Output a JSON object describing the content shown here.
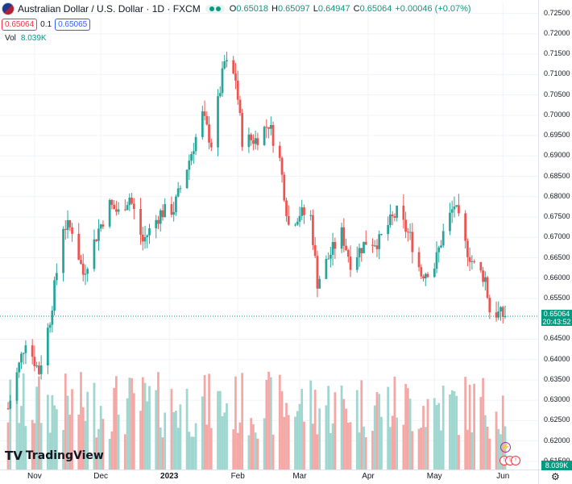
{
  "header": {
    "title": "Australian Dollar / U.S. Dollar · 1D · FXCM",
    "open_label": "O",
    "open": "0.65018",
    "high_label": "H",
    "high": "0.65097",
    "low_label": "L",
    "low": "0.64947",
    "close_label": "C",
    "close": "0.65064",
    "change": "+0.00046 (+0.07%)"
  },
  "trade": {
    "sell_price": "0.65064",
    "spread": "0.1",
    "buy_price": "0.65065"
  },
  "volume_indicator": {
    "label": "Vol",
    "value": "8.039K"
  },
  "last_price_tag": {
    "price": "0.65064",
    "countdown": "20:43:52"
  },
  "volume_tag": "8.039K",
  "branding": {
    "logo_text": "TradingView"
  },
  "colors": {
    "up": "#26a69a",
    "down": "#ef5350",
    "vol_up": "#9fd6cf",
    "vol_down": "#f4a8a6",
    "accent": "#089981"
  },
  "chart_data": {
    "type": "candlestick",
    "title": "Australian Dollar / U.S. Dollar · 1D · FXCM",
    "y_ticks": [
      "0.72500",
      "0.72000",
      "0.71500",
      "0.71000",
      "0.70500",
      "0.70000",
      "0.69500",
      "0.69000",
      "0.68500",
      "0.68000",
      "0.67500",
      "0.67000",
      "0.66500",
      "0.66000",
      "0.65500",
      "0.65000",
      "0.64500",
      "0.64000",
      "0.63500",
      "0.63000",
      "0.62500",
      "0.62000",
      "0.61500"
    ],
    "x_ticks": [
      "Nov",
      "Dec",
      "2023",
      "Feb",
      "Mar",
      "Apr",
      "May",
      "Jun"
    ],
    "ylim": [
      0.613,
      0.7275
    ],
    "last_price": 0.65064,
    "price_keypoints": [
      [
        "2022-10-20",
        0.628
      ],
      [
        "2022-10-28",
        0.645
      ],
      [
        "2022-11-03",
        0.637
      ],
      [
        "2022-11-08",
        0.65
      ],
      [
        "2022-11-14",
        0.673
      ],
      [
        "2022-11-18",
        0.672
      ],
      [
        "2022-11-23",
        0.661
      ],
      [
        "2022-11-30",
        0.672
      ],
      [
        "2022-12-05",
        0.678
      ],
      [
        "2022-12-09",
        0.676
      ],
      [
        "2022-12-14",
        0.68
      ],
      [
        "2022-12-20",
        0.669
      ],
      [
        "2022-12-28",
        0.676
      ],
      [
        "2023-01-03",
        0.677
      ],
      [
        "2023-01-10",
        0.689
      ],
      [
        "2023-01-16",
        0.7
      ],
      [
        "2023-01-20",
        0.693
      ],
      [
        "2023-01-26",
        0.713
      ],
      [
        "2023-01-31",
        0.709
      ],
      [
        "2023-02-03",
        0.694
      ],
      [
        "2023-02-09",
        0.694
      ],
      [
        "2023-02-15",
        0.698
      ],
      [
        "2023-02-20",
        0.689
      ],
      [
        "2023-02-24",
        0.673
      ],
      [
        "2023-03-01",
        0.676
      ],
      [
        "2023-03-06",
        0.675
      ],
      [
        "2023-03-09",
        0.659
      ],
      [
        "2023-03-14",
        0.665
      ],
      [
        "2023-03-20",
        0.671
      ],
      [
        "2023-03-24",
        0.664
      ],
      [
        "2023-03-31",
        0.669
      ],
      [
        "2023-04-06",
        0.669
      ],
      [
        "2023-04-10",
        0.673
      ],
      [
        "2023-04-14",
        0.676
      ],
      [
        "2023-04-20",
        0.67
      ],
      [
        "2023-04-25",
        0.661
      ],
      [
        "2023-05-01",
        0.663
      ],
      [
        "2023-05-05",
        0.671
      ],
      [
        "2023-05-10",
        0.678
      ],
      [
        "2023-05-15",
        0.668
      ],
      [
        "2023-05-19",
        0.663
      ],
      [
        "2023-05-24",
        0.66
      ],
      [
        "2023-05-26",
        0.652
      ],
      [
        "2023-05-31",
        0.651
      ],
      [
        "2023-06-02",
        0.6506
      ]
    ]
  }
}
